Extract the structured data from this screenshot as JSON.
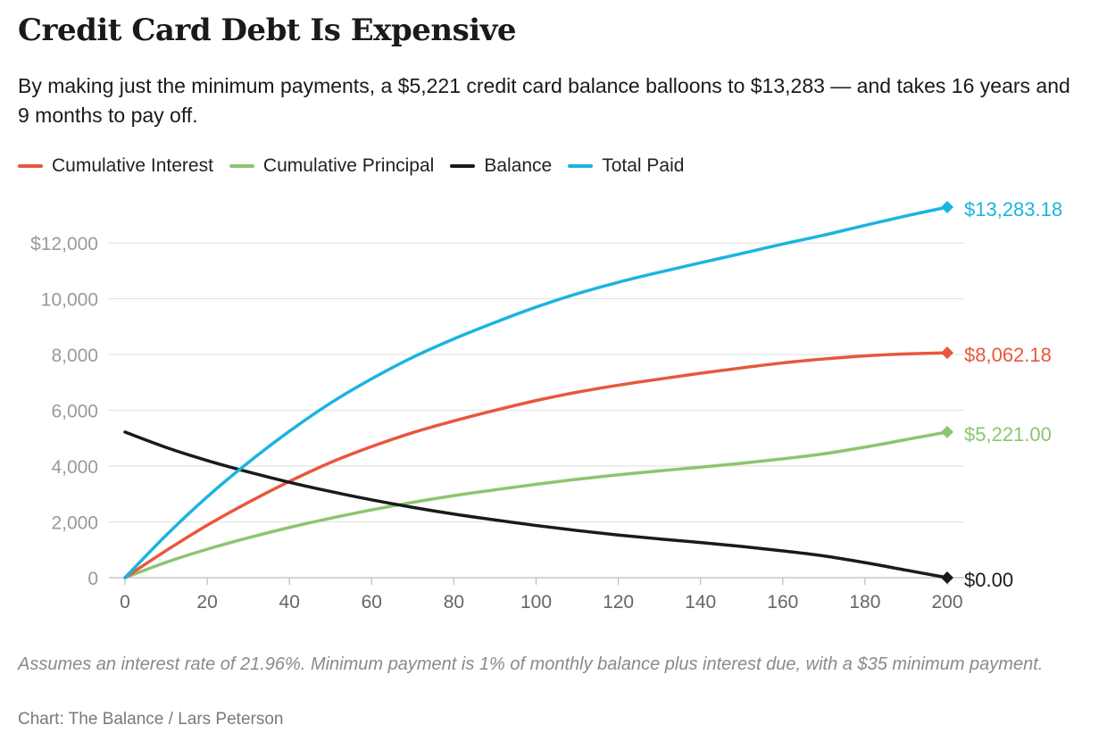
{
  "title": "Credit Card Debt Is Expensive",
  "subtitle": "By making just the minimum payments, a $5,221 credit card balance balloons to $13,283 — and takes 16 years and 9 months to pay off.",
  "note": "Assumes an interest rate of 21.96%. Minimum payment is 1% of monthly balance plus interest due, with a $35 minimum payment.",
  "source": "Chart: The Balance / Lars Peterson",
  "colors": {
    "interest": "#e8573d",
    "principal": "#8cc56f",
    "balance": "#1a1a1a",
    "total": "#1ab4e1",
    "grid": "#e3e3e3",
    "tick": "#9a9a9a",
    "axis_tick": "#666666"
  },
  "chart_data": {
    "type": "line",
    "xlabel": "",
    "ylabel": "",
    "xlim": [
      0,
      200
    ],
    "ylim": [
      0,
      13283.18
    ],
    "x_ticks": [
      0,
      20,
      40,
      60,
      80,
      100,
      120,
      140,
      160,
      180,
      200
    ],
    "x_tick_labels": [
      "0",
      "20",
      "40",
      "60",
      "80",
      "100",
      "120",
      "140",
      "160",
      "180",
      "200"
    ],
    "y_ticks": [
      0,
      2000,
      4000,
      6000,
      8000,
      10000,
      12000
    ],
    "y_tick_labels": [
      "0",
      "2,000",
      "4,000",
      "6,000",
      "8,000",
      "10,000",
      "$12,000"
    ],
    "grid": true,
    "legend_position": "top-left",
    "series": [
      {
        "key": "interest",
        "name": "Cumulative Interest",
        "end_label": "$8,062.18",
        "x": [
          0,
          10,
          20,
          30,
          40,
          50,
          60,
          70,
          80,
          90,
          100,
          110,
          120,
          130,
          140,
          150,
          160,
          170,
          180,
          190,
          200
        ],
        "values": [
          0,
          970,
          1880,
          2700,
          3450,
          4130,
          4700,
          5200,
          5620,
          6000,
          6350,
          6650,
          6900,
          7120,
          7330,
          7520,
          7700,
          7840,
          7950,
          8020,
          8062.18
        ]
      },
      {
        "key": "principal",
        "name": "Cumulative Principal",
        "end_label": "$5,221.00",
        "x": [
          0,
          10,
          20,
          30,
          40,
          50,
          60,
          70,
          80,
          90,
          100,
          110,
          120,
          130,
          140,
          150,
          160,
          170,
          180,
          190,
          200
        ],
        "values": [
          0,
          550,
          1020,
          1430,
          1800,
          2130,
          2430,
          2700,
          2940,
          3150,
          3350,
          3530,
          3690,
          3830,
          3960,
          4100,
          4260,
          4440,
          4680,
          4950,
          5221
        ]
      },
      {
        "key": "balance",
        "name": "Balance",
        "end_label": "$0.00",
        "x": [
          0,
          10,
          20,
          30,
          40,
          50,
          60,
          70,
          80,
          90,
          100,
          110,
          120,
          130,
          140,
          150,
          160,
          170,
          180,
          190,
          200
        ],
        "values": [
          5221,
          4670,
          4200,
          3790,
          3420,
          3090,
          2790,
          2520,
          2280,
          2070,
          1870,
          1690,
          1530,
          1390,
          1260,
          1120,
          960,
          780,
          540,
          270,
          0
        ]
      },
      {
        "key": "total",
        "name": "Total Paid",
        "end_label": "$13,283.18",
        "x": [
          0,
          10,
          20,
          30,
          40,
          50,
          60,
          70,
          80,
          90,
          100,
          110,
          120,
          130,
          140,
          150,
          160,
          170,
          180,
          190,
          200
        ],
        "values": [
          0,
          1520,
          2900,
          4130,
          5250,
          6260,
          7130,
          7900,
          8560,
          9150,
          9700,
          10180,
          10590,
          10950,
          11290,
          11620,
          11960,
          12280,
          12630,
          12970,
          13283.18
        ]
      }
    ]
  }
}
